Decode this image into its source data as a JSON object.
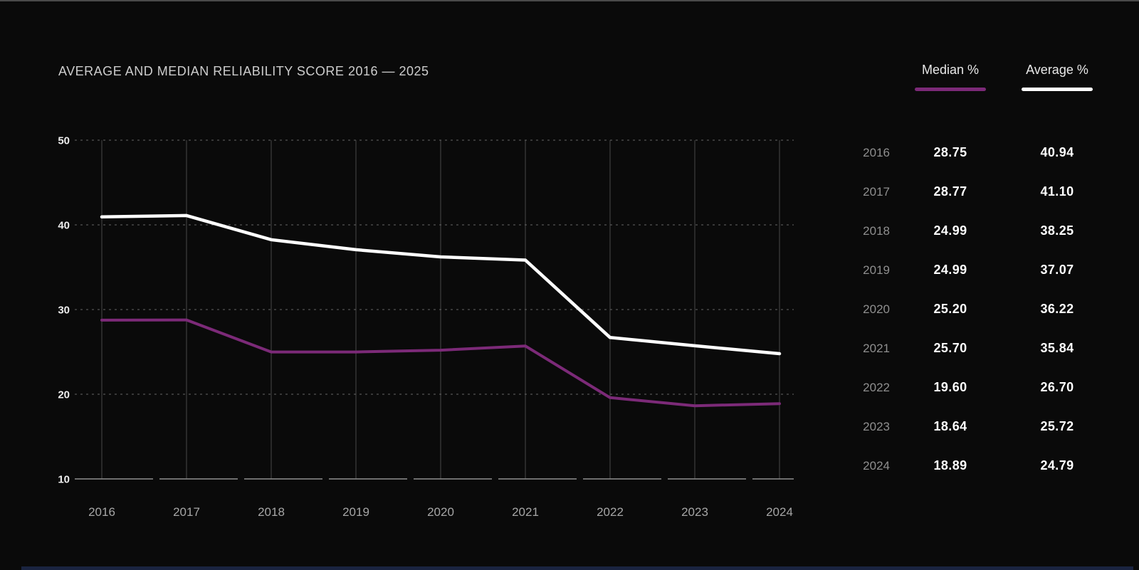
{
  "title": "AVERAGE AND MEDIAN RELIABILITY SCORE 2016 — 2025",
  "legend": [
    {
      "label": "Median %",
      "color": "#7c2a78"
    },
    {
      "label": "Average %",
      "color": "#ffffff"
    }
  ],
  "chart_data": {
    "type": "line",
    "title": "AVERAGE AND MEDIAN RELIABILITY SCORE 2016 — 2025",
    "categories": [
      "2016",
      "2017",
      "2018",
      "2019",
      "2020",
      "2021",
      "2022",
      "2023",
      "2024"
    ],
    "series": [
      {
        "name": "Median %",
        "color": "#7c2a78",
        "values": [
          28.75,
          28.77,
          24.99,
          24.99,
          25.2,
          25.7,
          19.6,
          18.64,
          18.89
        ]
      },
      {
        "name": "Average %",
        "color": "#ffffff",
        "values": [
          40.94,
          41.1,
          38.25,
          37.07,
          36.22,
          35.84,
          26.7,
          25.72,
          24.79
        ]
      }
    ],
    "xlabel": "",
    "ylabel": "",
    "ylim": [
      10,
      50
    ],
    "yticks": [
      10,
      20,
      30,
      40,
      50
    ],
    "grid": {
      "horizontal": "dashed",
      "vertical": "solid"
    },
    "legend_position": "top-right"
  },
  "table": {
    "rows": [
      {
        "year": "2016",
        "median": "28.75",
        "average": "40.94"
      },
      {
        "year": "2017",
        "median": "28.77",
        "average": "41.10"
      },
      {
        "year": "2018",
        "median": "24.99",
        "average": "38.25"
      },
      {
        "year": "2019",
        "median": "24.99",
        "average": "37.07"
      },
      {
        "year": "2020",
        "median": "25.20",
        "average": "36.22"
      },
      {
        "year": "2021",
        "median": "25.70",
        "average": "35.84"
      },
      {
        "year": "2022",
        "median": "19.60",
        "average": "26.70"
      },
      {
        "year": "2023",
        "median": "18.64",
        "average": "25.72"
      },
      {
        "year": "2024",
        "median": "18.89",
        "average": "24.79"
      }
    ]
  },
  "colors": {
    "background": "#0a0a0a",
    "median_line": "#7c2a78",
    "average_line": "#ffffff",
    "grid_dashed": "#666666",
    "grid_vertical": "#484848",
    "axis_line": "#8f8f8f",
    "bottom_accent": "#1a2440"
  }
}
